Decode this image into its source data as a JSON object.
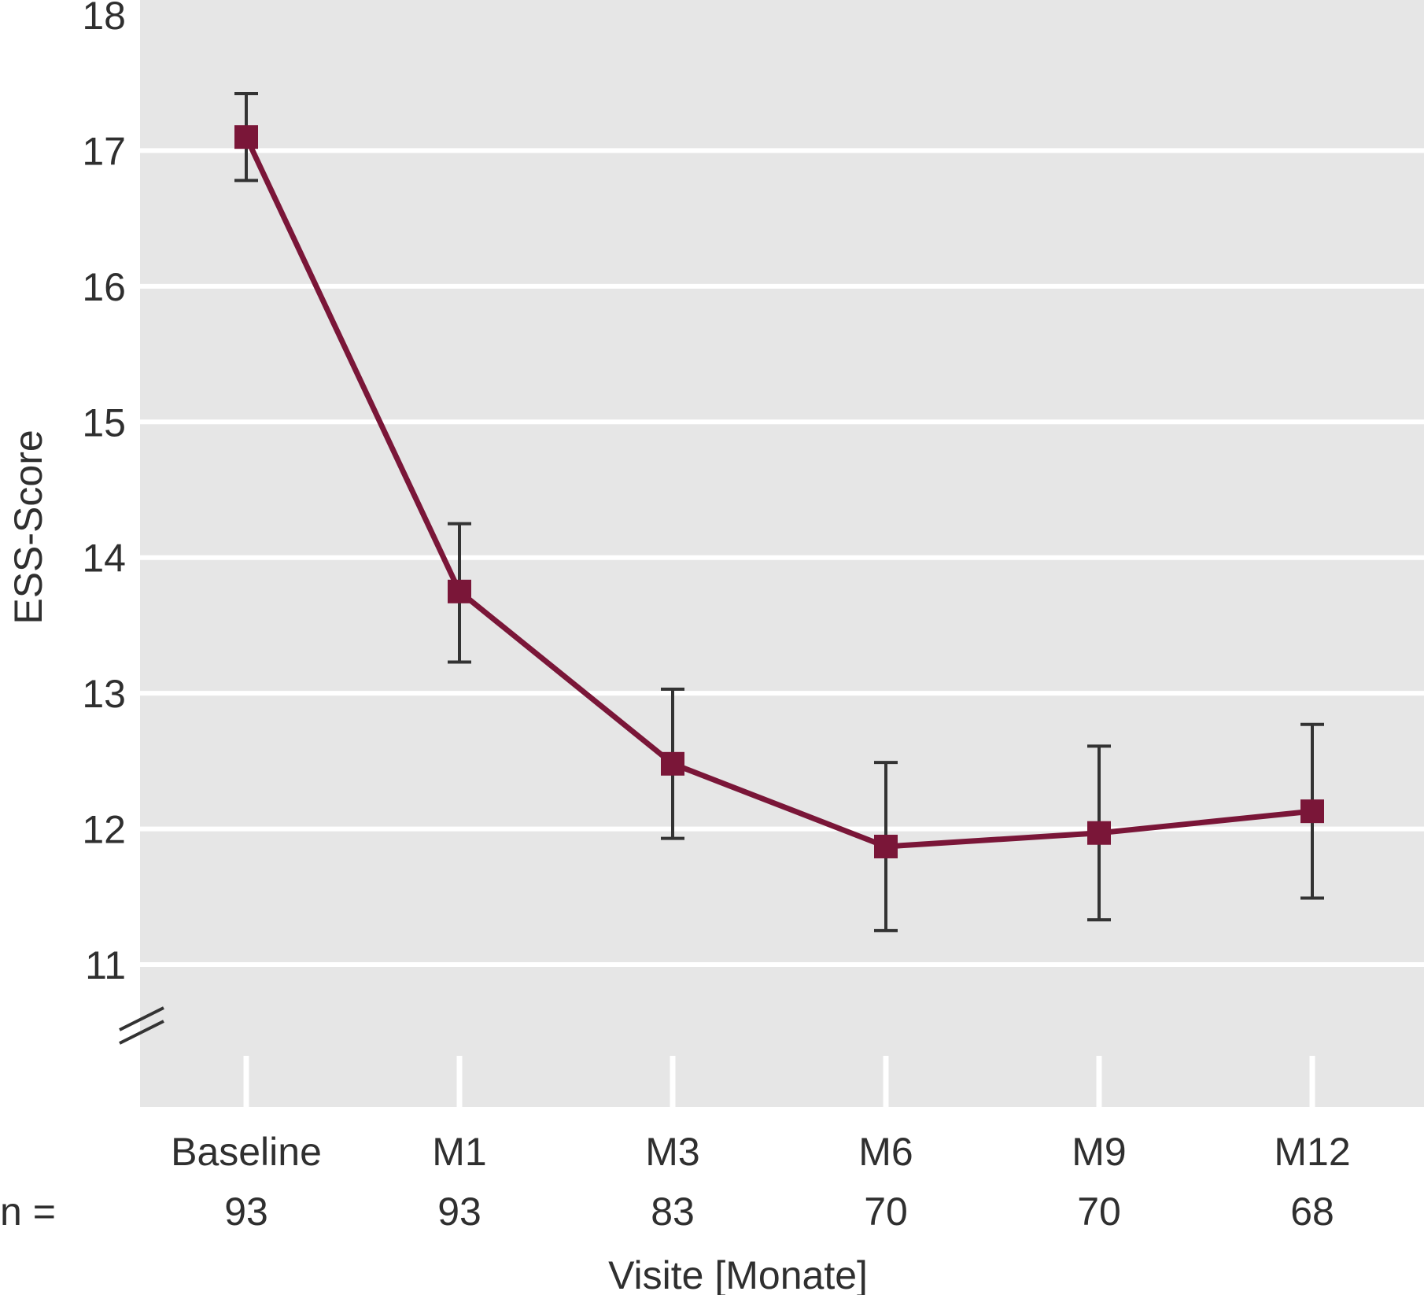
{
  "chart_data": {
    "type": "line",
    "title": "",
    "xlabel": "Visite [Monate]",
    "ylabel": "ESS-Score",
    "ylim": [
      11,
      18
    ],
    "yticks": [
      11,
      12,
      13,
      14,
      15,
      16,
      17,
      18
    ],
    "y_axis_break": true,
    "grid": true,
    "categories": [
      "Baseline",
      "M1",
      "M3",
      "M6",
      "M9",
      "M12"
    ],
    "n_prefix": "n =",
    "n_values": [
      "93",
      "93",
      "83",
      "70",
      "70",
      "68"
    ],
    "series": [
      {
        "values": [
          17.1,
          13.75,
          12.48,
          11.87,
          11.97,
          12.13
        ],
        "error_low": [
          16.78,
          13.23,
          11.93,
          11.25,
          11.33,
          11.49
        ],
        "error_high": [
          17.42,
          14.25,
          13.03,
          12.49,
          12.61,
          12.77
        ],
        "color": "#7a1638"
      }
    ],
    "colors": {
      "plot_background": "#e6e6e6",
      "gridline": "#ffffff",
      "error_bar": "#333333",
      "text": "#2f2f2f"
    }
  }
}
